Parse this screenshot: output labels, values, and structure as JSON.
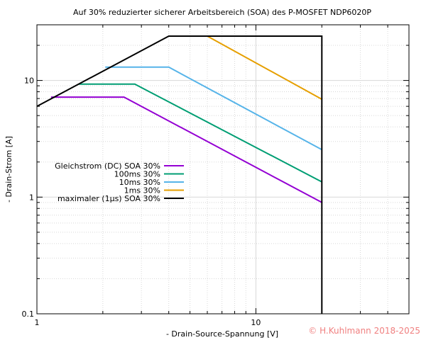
{
  "chart_data": {
    "type": "line",
    "title": "Auf 30% reduzierter sicherer Arbeitsbereich (SOA) des P-MOSFET NDP6020P",
    "xlabel": "- Drain-Source-Spannung [V]",
    "ylabel": "- Drain-Strom [A]",
    "x_scale": "log",
    "y_scale": "log",
    "xlim": [
      1,
      50
    ],
    "ylim": [
      0.1,
      30
    ],
    "x_ticks": [
      1,
      10
    ],
    "x_tick_labels": [
      "1",
      "10"
    ],
    "y_ticks": [
      0.1,
      1,
      10
    ],
    "y_tick_labels": [
      "0.1",
      "1",
      "10"
    ],
    "grid": true,
    "legend_position": "left-middle",
    "series": [
      {
        "name": "Gleichstrom (DC) SOA 30%",
        "color": "#9400d3",
        "x": [
          1.16,
          2.5,
          20
        ],
        "y": [
          7.2,
          7.2,
          0.9
        ]
      },
      {
        "name": "100ms 30%",
        "color": "#009e73",
        "x": [
          1.55,
          2.8,
          20
        ],
        "y": [
          9.3,
          9.3,
          1.35
        ]
      },
      {
        "name": "10ms 30%",
        "color": "#56b4e9",
        "x": [
          2.05,
          4.0,
          20
        ],
        "y": [
          13,
          13,
          2.55
        ]
      },
      {
        "name": "1ms 30%",
        "color": "#e69f00",
        "x": [
          6.0,
          20
        ],
        "y": [
          24,
          6.9
        ]
      },
      {
        "name": "maximaler (1µs) SOA 30%",
        "color": "#000000",
        "x": [
          1,
          4.0,
          20,
          20
        ],
        "y": [
          6.0,
          24,
          24,
          0.1
        ]
      }
    ]
  },
  "copyright": "© H.Kuhlmann 2018-2025"
}
